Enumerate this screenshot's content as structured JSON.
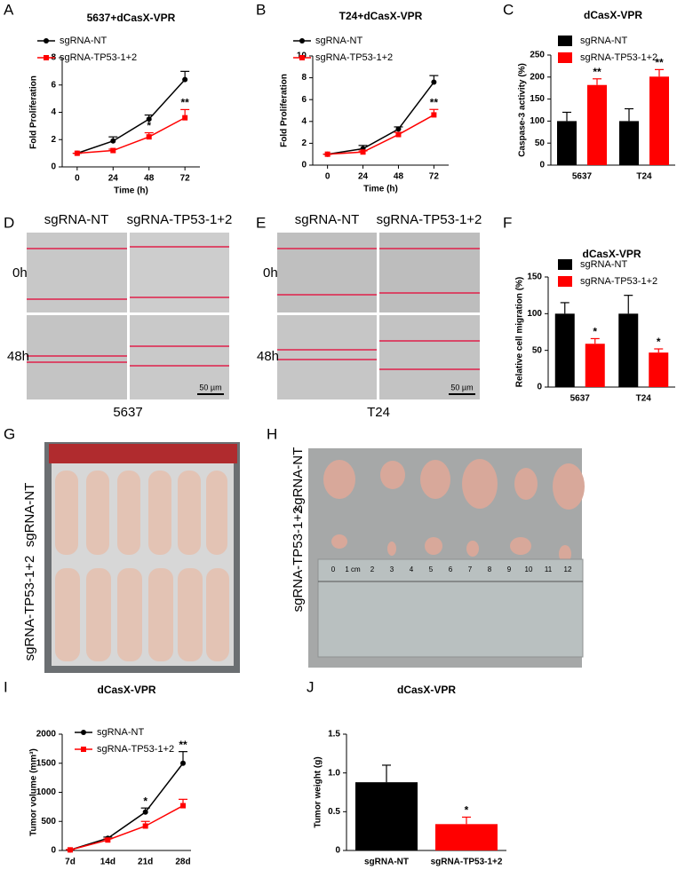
{
  "panel_letters": [
    "A",
    "B",
    "C",
    "D",
    "E",
    "F",
    "G",
    "H",
    "I",
    "J"
  ],
  "chart_data": [
    {
      "type": "line",
      "title": "5637+dCasX-VPR",
      "x_label": "Time (h)",
      "y_label": "Fold Proliferation",
      "x": [
        0,
        24,
        48,
        72
      ],
      "xlim": [
        -10,
        82
      ],
      "xticks": [
        0,
        24,
        48,
        72
      ],
      "ylim": [
        0,
        8
      ],
      "yticks": [
        0,
        2,
        4,
        6,
        8
      ],
      "series": [
        {
          "name": "sgRNA-NT",
          "color": "#000000",
          "marker": "circle",
          "values": [
            1,
            1.9,
            3.5,
            6.4
          ],
          "errors": [
            0,
            0.3,
            0.3,
            0.6
          ]
        },
        {
          "name": "sgRNA-TP53-1+2",
          "color": "#ff0000",
          "marker": "square",
          "values": [
            1,
            1.2,
            2.2,
            3.6
          ],
          "errors": [
            0,
            0.1,
            0.3,
            0.6
          ]
        }
      ],
      "annotations": [
        {
          "text": "*",
          "series": 1,
          "index": 2
        },
        {
          "text": "**",
          "series": 1,
          "index": 3
        }
      ]
    },
    {
      "type": "line",
      "title": "T24+dCasX-VPR",
      "x_label": "Time (h)",
      "y_label": "Fold Proliferation",
      "x": [
        0,
        24,
        48,
        72
      ],
      "xlim": [
        -10,
        82
      ],
      "xticks": [
        0,
        24,
        48,
        72
      ],
      "ylim": [
        0,
        10
      ],
      "yticks": [
        0,
        2,
        4,
        6,
        8,
        10
      ],
      "series": [
        {
          "name": "sgRNA-NT",
          "color": "#000000",
          "marker": "circle",
          "values": [
            1,
            1.5,
            3.3,
            7.6
          ],
          "errors": [
            0,
            0.3,
            0.2,
            0.6
          ]
        },
        {
          "name": "sgRNA-TP53-1+2",
          "color": "#ff0000",
          "marker": "square",
          "values": [
            1,
            1.2,
            2.8,
            4.6
          ],
          "errors": [
            0,
            0.1,
            0.2,
            0.5
          ]
        }
      ],
      "annotations": [
        {
          "text": "**",
          "series": 1,
          "index": 3
        }
      ]
    },
    {
      "type": "bar",
      "title": "dCasX-VPR",
      "y_label": "Caspase-3 activity (%)",
      "categories": [
        "5637",
        "T24"
      ],
      "ylim": [
        0,
        250
      ],
      "yticks": [
        0,
        50,
        100,
        150,
        200,
        250
      ],
      "series": [
        {
          "name": "sgRNA-NT",
          "color": "#000000",
          "values": [
            100,
            100
          ],
          "errors": [
            20,
            28
          ]
        },
        {
          "name": "sgRNA-TP53-1+2",
          "color": "#ff0000",
          "values": [
            182,
            201
          ],
          "errors": [
            14,
            16
          ]
        }
      ],
      "annotations": [
        {
          "text": "**",
          "series": 1,
          "index": 0
        },
        {
          "text": "**",
          "series": 1,
          "index": 1
        }
      ]
    },
    {
      "type": "bar",
      "title": "dCasX-VPR",
      "y_label": "Relative cell migration (%)",
      "categories": [
        "5637",
        "T24"
      ],
      "ylim": [
        0,
        150
      ],
      "yticks": [
        0,
        50,
        100,
        150
      ],
      "series": [
        {
          "name": "sgRNA-NT",
          "color": "#000000",
          "values": [
            100,
            100
          ],
          "errors": [
            15,
            25
          ]
        },
        {
          "name": "sgRNA-TP53-1+2",
          "color": "#ff0000",
          "values": [
            59,
            47
          ],
          "errors": [
            7,
            5
          ]
        }
      ],
      "annotations": [
        {
          "text": "*",
          "series": 1,
          "index": 0
        },
        {
          "text": "*",
          "series": 1,
          "index": 1
        }
      ]
    },
    {
      "type": "line",
      "title": "dCasX-VPR",
      "y_label": "Tumor volume (mm³)",
      "categories": [
        "7d",
        "14d",
        "21d",
        "28d"
      ],
      "ylim": [
        0,
        2000
      ],
      "yticks": [
        0,
        500,
        1000,
        1500,
        2000
      ],
      "series": [
        {
          "name": "sgRNA-NT",
          "color": "#000000",
          "marker": "circle",
          "values": [
            10,
            210,
            660,
            1500
          ],
          "errors": [
            5,
            20,
            70,
            200
          ]
        },
        {
          "name": "sgRNA-TP53-1+2",
          "color": "#ff0000",
          "marker": "square",
          "values": [
            10,
            180,
            420,
            770
          ],
          "errors": [
            5,
            20,
            80,
            110
          ]
        }
      ],
      "annotations": [
        {
          "text": "*",
          "series": 0,
          "index": 2
        },
        {
          "text": "**",
          "series": 0,
          "index": 3
        }
      ]
    },
    {
      "type": "bar",
      "title": "dCasX-VPR",
      "y_label": "Tumor weight (g)",
      "categories": [
        "sgRNA-NT",
        "sgRNA-TP53-1+2"
      ],
      "ylim": [
        0,
        1.5
      ],
      "yticks": [
        0,
        0.5,
        {
          "value": 1,
          "label": "1.0"
        },
        1.5
      ],
      "series": [
        {
          "colors": [
            "#000000",
            "#ff0000"
          ],
          "values": [
            0.88,
            0.34
          ],
          "errors": [
            0.22,
            0.09
          ]
        }
      ],
      "annotations": [
        {
          "text": "*",
          "series": 0,
          "index": 1
        }
      ]
    }
  ],
  "images": {
    "D": {
      "columns": [
        "sgRNA-NT",
        "sgRNA-TP53-1+2"
      ],
      "rows": [
        "0h",
        "48h"
      ],
      "scale": "50 µm",
      "caption": "5637"
    },
    "E": {
      "columns": [
        "sgRNA-NT",
        "sgRNA-TP53-1+2"
      ],
      "rows": [
        "0h",
        "48h"
      ],
      "scale": "50 µm",
      "caption": "T24"
    },
    "G": {
      "rows": [
        "sgRNA-NT",
        "sgRNA-TP53-1+2"
      ]
    },
    "H": {
      "rows": [
        "sgRNA-NT",
        "sgRNA-TP53-1+2"
      ],
      "ruler": [
        "0",
        "1 cm",
        "2",
        "3",
        "4",
        "5",
        "6",
        "7",
        "8",
        "9",
        "10",
        "11",
        "12"
      ]
    }
  }
}
